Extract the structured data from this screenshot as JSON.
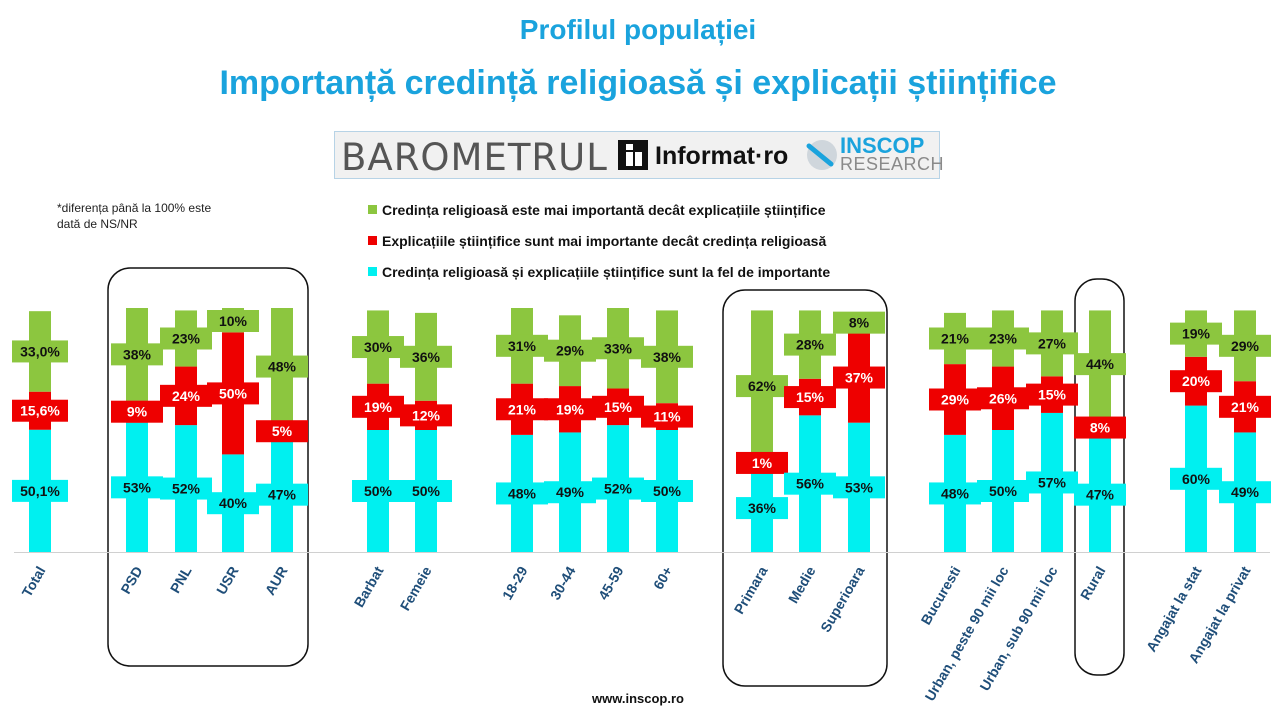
{
  "title": "Profilul populației",
  "subtitle": "Importanță credință religioasă și explicații științifice",
  "logos": {
    "barometrul": "BAROMETRUL",
    "informat": "Informat·ro",
    "inscop": "INSCOP",
    "research": "RESEARCH"
  },
  "note": "*diferența până la 100% este dată de NS/NR",
  "footer": "www.inscop.ro",
  "colors": {
    "religion": "#8cc63f",
    "science": "#ee0000",
    "equal": "#00f0f0",
    "title": "#1aa3dd",
    "category": "#1f4e79"
  },
  "chart_data": {
    "type": "bar",
    "stacked": true,
    "ylim": [
      0,
      100
    ],
    "categories": [
      "Total",
      "PSD",
      "PNL",
      "USR",
      "AUR",
      "Barbat",
      "Femeie",
      "18-29",
      "30-44",
      "45-59",
      "60+",
      "Primara",
      "Medie",
      "Superioara",
      "Bucuresti",
      "Urban, peste 90 mii loc",
      "Urban, sub 90 mii loc",
      "Rural",
      "Angajat la stat",
      "Angajat la privat"
    ],
    "series": [
      {
        "key": "equal",
        "name": "Credința religioasă și explicațiile științifice sunt la fel de importante",
        "values": [
          50.1,
          53,
          52,
          40,
          47,
          50,
          50,
          48,
          49,
          52,
          50,
          36,
          56,
          53,
          48,
          50,
          57,
          47,
          60,
          49
        ],
        "labels": [
          "50,1%",
          "53%",
          "52%",
          "40%",
          "47%",
          "50%",
          "50%",
          "48%",
          "49%",
          "52%",
          "50%",
          "36%",
          "56%",
          "53%",
          "48%",
          "50%",
          "57%",
          "47%",
          "60%",
          "49%"
        ]
      },
      {
        "key": "science",
        "name": "Explicațiile științifice sunt mai importante decât credința religioasă",
        "values": [
          15.6,
          9,
          24,
          50,
          5,
          19,
          12,
          21,
          19,
          15,
          11,
          1,
          15,
          37,
          29,
          26,
          15,
          8,
          20,
          21
        ],
        "labels": [
          "15,6%",
          "9%",
          "24%",
          "50%",
          "5%",
          "19%",
          "12%",
          "21%",
          "19%",
          "15%",
          "11%",
          "1%",
          "15%",
          "37%",
          "29%",
          "26%",
          "15%",
          "8%",
          "20%",
          "21%"
        ]
      },
      {
        "key": "religion",
        "name": "Credința religioasă este mai importantă decât explicațiile științifice",
        "values": [
          33.0,
          38,
          23,
          10,
          48,
          30,
          36,
          31,
          29,
          33,
          38,
          62,
          28,
          8,
          21,
          23,
          27,
          44,
          19,
          29
        ],
        "labels": [
          "33,0%",
          "38%",
          "23%",
          "10%",
          "48%",
          "30%",
          "36%",
          "31%",
          "29%",
          "33%",
          "38%",
          "62%",
          "28%",
          "8%",
          "21%",
          "23%",
          "27%",
          "44%",
          "19%",
          "29%"
        ]
      }
    ],
    "legend_order": [
      "religion",
      "science",
      "equal"
    ],
    "legend": "top-center"
  }
}
